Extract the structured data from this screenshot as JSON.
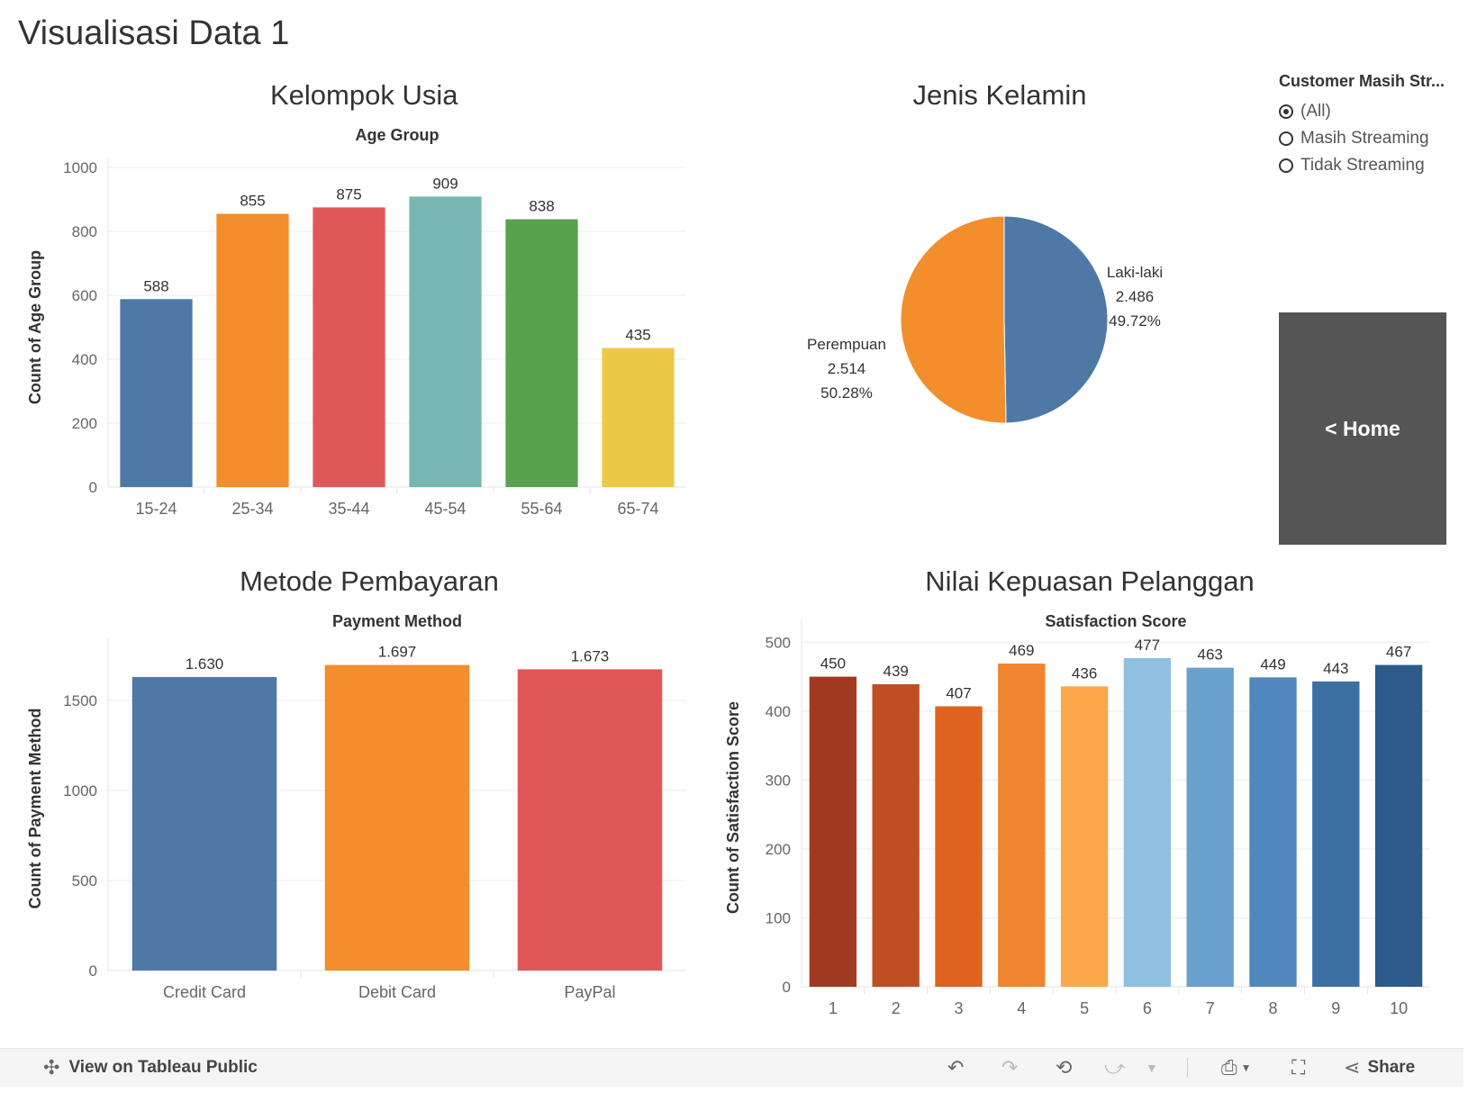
{
  "page_title": "Visualisasi Data 1",
  "panels": {
    "age": {
      "title": "Kelompok Usia",
      "chart_data": {
        "type": "bar",
        "title": "Age Group",
        "ylabel": "Count of Age Group",
        "categories": [
          "15-24",
          "25-34",
          "35-44",
          "45-54",
          "55-64",
          "65-74"
        ],
        "values": [
          588,
          855,
          875,
          909,
          838,
          435
        ],
        "value_labels": [
          "588",
          "855",
          "875",
          "909",
          "838",
          "435"
        ],
        "colors": [
          "#4e79a7",
          "#f28e2b",
          "#e15759",
          "#76b7b2",
          "#59a14f",
          "#edc948"
        ],
        "yticks": [
          0,
          200,
          400,
          600,
          800,
          1000
        ],
        "ylim": [
          0,
          1000
        ],
        "grid": true
      }
    },
    "gender": {
      "title": "Jenis Kelamin",
      "chart_data": {
        "type": "pie",
        "categories": [
          "Laki-laki",
          "Perempuan"
        ],
        "values": [
          2486,
          2514
        ],
        "value_labels": [
          "2.486",
          "2.514"
        ],
        "percent_labels": [
          "49.72%",
          "50.28%"
        ],
        "colors": [
          "#4e79a7",
          "#f28e2b"
        ]
      }
    },
    "payment": {
      "title": "Metode Pembayaran",
      "chart_data": {
        "type": "bar",
        "title": "Payment Method",
        "ylabel": "Count of Payment Method",
        "categories": [
          "Credit Card",
          "Debit Card",
          "PayPal"
        ],
        "values": [
          1630,
          1697,
          1673
        ],
        "value_labels": [
          "1.630",
          "1.697",
          "1.673"
        ],
        "colors": [
          "#4e79a7",
          "#f28e2b",
          "#e15759"
        ],
        "yticks": [
          0,
          500,
          1000,
          1500
        ],
        "ylim": [
          0,
          1800
        ],
        "grid": true
      }
    },
    "satisfaction": {
      "title": "Nilai Kepuasan Pelanggan",
      "chart_data": {
        "type": "bar",
        "title": "Satisfaction Score",
        "ylabel": "Count of Satisfaction Score",
        "categories": [
          "1",
          "2",
          "3",
          "4",
          "5",
          "6",
          "7",
          "8",
          "9",
          "10"
        ],
        "values": [
          450,
          439,
          407,
          469,
          436,
          477,
          463,
          449,
          443,
          467
        ],
        "value_labels": [
          "450",
          "439",
          "407",
          "469",
          "436",
          "477",
          "463",
          "449",
          "443",
          "467"
        ],
        "colors": [
          "#a03a23",
          "#c04e24",
          "#e0621f",
          "#f28530",
          "#fca84a",
          "#8fc0df",
          "#6aa0cc",
          "#5088bd",
          "#3d6fa4",
          "#2c5a8a"
        ],
        "yticks": [
          0,
          100,
          200,
          300,
          400,
          500
        ],
        "ylim": [
          0,
          520
        ],
        "grid": true
      }
    }
  },
  "filter": {
    "title": "Customer Masih Str...",
    "options": [
      {
        "label": "(All)",
        "selected": true
      },
      {
        "label": "Masih Streaming",
        "selected": false
      },
      {
        "label": "Tidak Streaming",
        "selected": false
      }
    ]
  },
  "home_button": {
    "label": "< Home",
    "color": "#555555"
  },
  "toolbar": {
    "view_label": "View on Tableau Public",
    "share_label": "Share"
  }
}
